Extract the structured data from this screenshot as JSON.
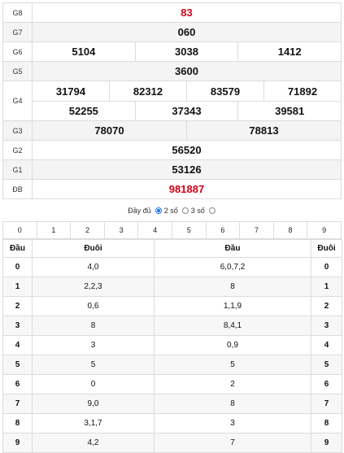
{
  "prizes": {
    "g8": {
      "label": "G8",
      "values": [
        "83"
      ]
    },
    "g7": {
      "label": "G7",
      "values": [
        "060"
      ]
    },
    "g6": {
      "label": "G6",
      "values": [
        "5104",
        "3038",
        "1412"
      ]
    },
    "g5": {
      "label": "G5",
      "values": [
        "3600"
      ]
    },
    "g4": {
      "label": "G4",
      "values": [
        "31794",
        "82312",
        "83579",
        "71892",
        "52255",
        "37343",
        "39581"
      ]
    },
    "g3": {
      "label": "G3",
      "values": [
        "78070",
        "78813"
      ]
    },
    "g2": {
      "label": "G2",
      "values": [
        "56520"
      ]
    },
    "g1": {
      "label": "G1",
      "values": [
        "53126"
      ]
    },
    "db": {
      "label": "ĐB",
      "values": [
        "981887"
      ]
    }
  },
  "options": {
    "full_label": "Đầy đủ",
    "two_label": "2 số",
    "three_label": "3 số",
    "selected": "2 số"
  },
  "digits": [
    "0",
    "1",
    "2",
    "3",
    "4",
    "5",
    "6",
    "7",
    "8",
    "9"
  ],
  "head_tail": {
    "headers": [
      "Đầu",
      "Đuôi",
      "Đầu",
      "Đuôi"
    ],
    "rows": [
      {
        "k": "0",
        "tail": "4,0",
        "head": "6,0,7,2",
        "k2": "0"
      },
      {
        "k": "1",
        "tail": "2,2,3",
        "head": "8",
        "k2": "1"
      },
      {
        "k": "2",
        "tail": "0,6",
        "head": "1,1,9",
        "k2": "2"
      },
      {
        "k": "3",
        "tail": "8",
        "head": "8,4,1",
        "k2": "3"
      },
      {
        "k": "4",
        "tail": "3",
        "head": "0,9",
        "k2": "4"
      },
      {
        "k": "5",
        "tail": "5",
        "head": "5",
        "k2": "5"
      },
      {
        "k": "6",
        "tail": "0",
        "head": "2",
        "k2": "6"
      },
      {
        "k": "7",
        "tail": "9,0",
        "head": "8",
        "k2": "7"
      },
      {
        "k": "8",
        "tail": "3,1,7",
        "head": "3",
        "k2": "8"
      },
      {
        "k": "9",
        "tail": "4,2",
        "head": "7",
        "k2": "9"
      }
    ]
  },
  "colors": {
    "red": "#d0021b",
    "radio_selected": "#1a73e8"
  }
}
